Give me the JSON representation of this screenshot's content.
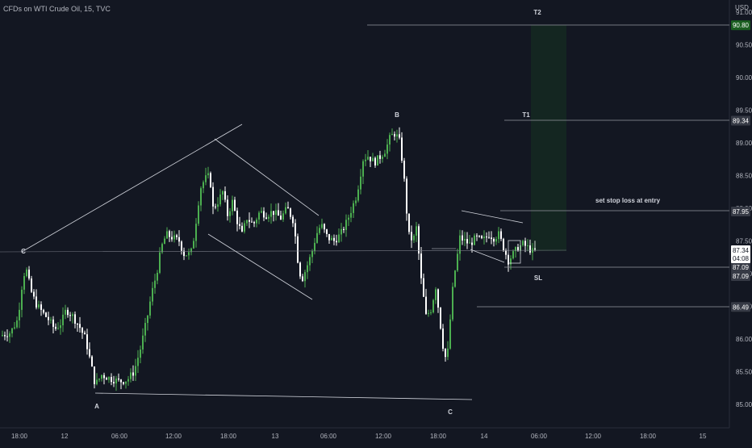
{
  "header": {
    "symbol_title": "CFDs on WTI Crude Oil, 15, TVC"
  },
  "chart_data": {
    "type": "candlestick",
    "currency": "USD",
    "ylim": [
      84.9,
      91.05
    ],
    "y_ticks": [
      "85.00",
      "85.50",
      "86.00",
      "86.50",
      "87.00",
      "87.50",
      "88.00",
      "88.50",
      "89.00",
      "89.50",
      "90.00",
      "90.50",
      "91.00"
    ],
    "x_ticks": [
      "18:00",
      "12",
      "06:00",
      "12:00",
      "18:00",
      "13",
      "06:00",
      "12:00",
      "18:00",
      "14",
      "06:00",
      "12:00",
      "18:00",
      "15"
    ],
    "last_price": {
      "value": "87.34",
      "countdown": "04:08"
    },
    "price_labels": [
      {
        "value": "90.80",
        "color": "#1b5e20"
      },
      {
        "value": "89.34",
        "color": "#363a45"
      },
      {
        "value": "87.95",
        "color": "#363a45"
      },
      {
        "value": "87.35",
        "color": "#363a45"
      },
      {
        "value": "87.09",
        "color": "#363a45"
      },
      {
        "value": "87.09",
        "color": "#363a45"
      },
      {
        "value": "86.49",
        "color": "#363a45"
      }
    ],
    "annotations": {
      "wave_labels": [
        "C",
        "A",
        "B",
        "C"
      ],
      "targets": [
        "T2",
        "T1"
      ],
      "stop_label": "SL",
      "note": "set stop loss at entry"
    },
    "anchor_points": [
      {
        "label": "C",
        "price": 87.35
      },
      {
        "label": "A",
        "price": 85.15
      },
      {
        "label": "B",
        "price": 89.3
      },
      {
        "label": "C",
        "price": 85.05
      }
    ],
    "colors": {
      "up": "#4caf50",
      "down": "#ffffff",
      "background": "#131722",
      "text": "#b2b5be"
    }
  }
}
